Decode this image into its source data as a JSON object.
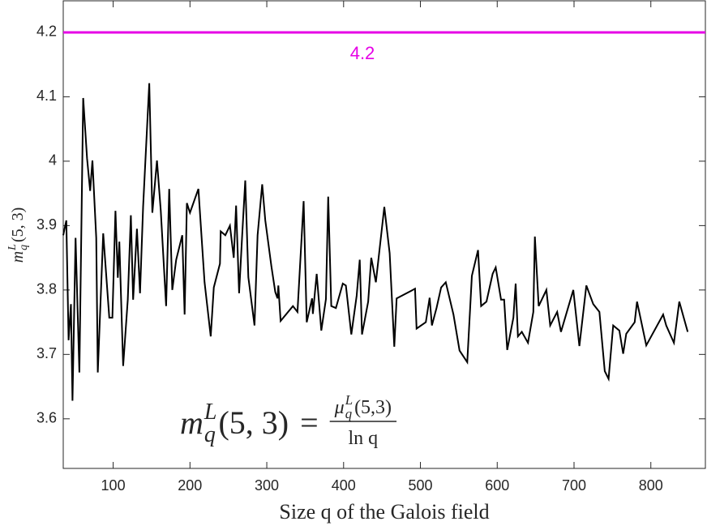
{
  "chart_data": {
    "type": "line",
    "xlabel": "Size q of the Galois field",
    "ylabel": {
      "base": "m",
      "sup": "L",
      "sub": "q",
      "args": "(5, 3)"
    },
    "annotation": {
      "lhs": {
        "base": "m",
        "sup": "L",
        "sub": "q",
        "args": "(5, 3)"
      },
      "equals": "=",
      "numerator": {
        "base": "μ",
        "sup": "L",
        "sub": "q",
        "args": "(5,3)"
      },
      "denominator": "ln q"
    },
    "reference_line": {
      "value": 4.2,
      "label": "4.2",
      "color": "#e600e6"
    },
    "xlim": [
      35,
      871
    ],
    "ylim": [
      3.523,
      4.249
    ],
    "xticks": [
      100,
      200,
      300,
      400,
      500,
      600,
      700,
      800
    ],
    "yticks": [
      3.6,
      3.7,
      3.8,
      3.9,
      4,
      4.1,
      4.2
    ],
    "x": [
      35,
      39,
      42,
      45,
      47,
      51,
      56,
      61,
      66,
      70,
      73,
      78,
      80,
      87,
      95,
      99,
      103,
      106,
      108,
      113,
      119,
      123,
      126,
      131,
      135,
      139,
      147,
      151,
      157,
      162,
      169,
      173,
      177,
      182,
      190,
      193,
      196,
      200,
      211,
      219,
      227,
      231,
      239,
      240,
      246,
      252,
      257,
      260,
      264,
      268,
      272,
      276,
      284,
      288,
      294,
      298,
      306,
      311,
      314,
      315,
      318,
      334,
      340,
      348,
      352,
      359,
      360,
      365,
      371,
      377,
      380,
      384,
      390,
      399,
      403,
      410,
      417,
      421,
      424,
      432,
      436,
      442,
      453,
      460,
      466,
      469,
      493,
      495,
      507,
      512,
      515,
      521,
      527,
      533,
      543,
      551,
      561,
      567,
      575,
      579,
      586,
      594,
      598,
      605,
      609,
      613,
      621,
      624,
      627,
      632,
      640,
      647,
      649,
      654,
      664,
      669,
      678,
      683,
      699,
      707,
      716,
      725,
      733,
      740,
      745,
      751,
      759,
      764,
      768,
      779,
      782,
      794,
      816,
      820,
      830,
      837,
      848
    ],
    "series": [
      {
        "color": "#000000",
        "values": [
          3.885,
          3.908,
          3.722,
          3.778,
          3.628,
          3.881,
          3.672,
          4.098,
          4.004,
          3.954,
          4.001,
          3.881,
          3.672,
          3.888,
          3.757,
          3.757,
          3.923,
          3.819,
          3.875,
          3.682,
          3.785,
          3.916,
          3.785,
          3.895,
          3.795,
          3.929,
          4.121,
          3.92,
          4.001,
          3.923,
          3.775,
          3.957,
          3.8,
          3.847,
          3.885,
          3.762,
          3.935,
          3.92,
          3.957,
          3.812,
          3.728,
          3.804,
          3.841,
          3.891,
          3.885,
          3.9,
          3.85,
          3.931,
          3.795,
          3.885,
          3.97,
          3.82,
          3.745,
          3.885,
          3.964,
          3.908,
          3.837,
          3.797,
          3.787,
          3.807,
          3.752,
          3.775,
          3.766,
          3.938,
          3.75,
          3.787,
          3.763,
          3.825,
          3.737,
          3.786,
          3.945,
          3.775,
          3.772,
          3.81,
          3.807,
          3.731,
          3.791,
          3.847,
          3.731,
          3.782,
          3.85,
          3.812,
          3.929,
          3.857,
          3.712,
          3.787,
          3.802,
          3.74,
          3.75,
          3.788,
          3.745,
          3.772,
          3.804,
          3.812,
          3.762,
          3.706,
          3.688,
          3.822,
          3.862,
          3.775,
          3.782,
          3.825,
          3.835,
          3.785,
          3.785,
          3.707,
          3.757,
          3.81,
          3.728,
          3.735,
          3.718,
          3.766,
          3.883,
          3.775,
          3.8,
          3.745,
          3.766,
          3.735,
          3.8,
          3.713,
          3.807,
          3.778,
          3.766,
          3.674,
          3.662,
          3.745,
          3.737,
          3.701,
          3.732,
          3.75,
          3.782,
          3.714,
          3.762,
          3.745,
          3.718,
          3.782,
          3.735
        ]
      }
    ]
  }
}
